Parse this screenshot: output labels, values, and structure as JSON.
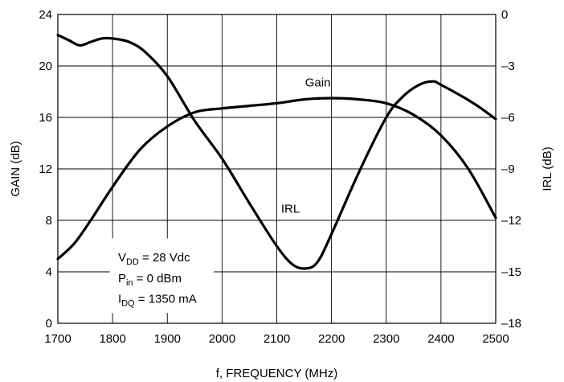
{
  "chart_data": {
    "type": "line",
    "title": "",
    "xlabel": "f, FREQUENCY (MHz)",
    "ylabel": "GAIN (dB)",
    "y2label": "IRL (dB)",
    "xlim": [
      1700,
      2500
    ],
    "ylim": [
      0,
      24
    ],
    "y2lim": [
      -18,
      0
    ],
    "grid": true,
    "x_ticks": [
      "1700",
      "1800",
      "1900",
      "2000",
      "2100",
      "2200",
      "2300",
      "2400",
      "2500"
    ],
    "y_ticks": [
      "0",
      "4",
      "8",
      "12",
      "16",
      "20",
      "24"
    ],
    "y2_ticks": [
      "-18",
      "-15",
      "-12",
      "-9",
      "-6",
      "-3",
      "0"
    ],
    "series": [
      {
        "name": "Gain",
        "axis": "left",
        "x": [
          1700,
          1730,
          1760,
          1800,
          1850,
          1900,
          1950,
          2000,
          2050,
          2100,
          2150,
          2200,
          2250,
          2300,
          2350,
          2400,
          2450,
          2500
        ],
        "y": [
          5.0,
          6.2,
          8.0,
          10.6,
          13.5,
          15.3,
          16.4,
          16.7,
          16.9,
          17.1,
          17.4,
          17.5,
          17.4,
          17.1,
          16.2,
          14.6,
          12.0,
          8.2
        ]
      },
      {
        "name": "IRL",
        "axis": "right",
        "x": [
          1700,
          1720,
          1740,
          1760,
          1780,
          1800,
          1830,
          1860,
          1900,
          1950,
          2000,
          2050,
          2100,
          2130,
          2155,
          2175,
          2200,
          2250,
          2300,
          2330,
          2360,
          2385,
          2400,
          2440,
          2470,
          2500
        ],
        "y": [
          -1.2,
          -1.5,
          -1.8,
          -1.6,
          -1.4,
          -1.4,
          -1.6,
          -2.2,
          -3.6,
          -6.2,
          -8.4,
          -11.0,
          -13.5,
          -14.6,
          -14.8,
          -14.4,
          -12.8,
          -9.2,
          -6.0,
          -4.8,
          -4.1,
          -3.9,
          -4.1,
          -4.8,
          -5.4,
          -6.1
        ]
      }
    ],
    "annotations": {
      "gain_label": "Gain",
      "irl_label": "IRL",
      "vdd_base": "V",
      "vdd_sub": "DD",
      "vdd_rest": " = 28 Vdc",
      "pin_base": "P",
      "pin_sub": "in",
      "pin_rest": " = 0 dBm",
      "idq_base": "I",
      "idq_sub": "DQ",
      "idq_rest": " = 1350 mA"
    },
    "colors": {
      "line": "#000000",
      "grid": "#000000",
      "background": "#ffffff"
    }
  }
}
